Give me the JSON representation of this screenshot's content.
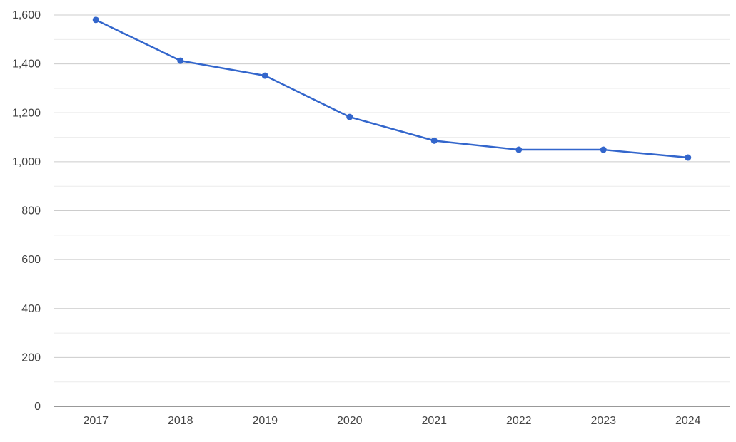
{
  "chart_data": {
    "type": "line",
    "categories": [
      "2017",
      "2018",
      "2019",
      "2020",
      "2021",
      "2022",
      "2023",
      "2024"
    ],
    "series": [
      {
        "values": [
          1580,
          1413,
          1352,
          1183,
          1086,
          1049,
          1049,
          1017
        ],
        "color": "#3366cc"
      }
    ],
    "ylim": [
      0,
      1600
    ],
    "yticks": [
      0,
      200,
      400,
      600,
      800,
      1000,
      1200,
      1400,
      1600
    ],
    "ytick_labels": [
      "0",
      "200",
      "400",
      "600",
      "800",
      "1,000",
      "1,200",
      "1,400",
      "1,600"
    ],
    "grid": true,
    "minor_grid": true,
    "legend": "none"
  }
}
